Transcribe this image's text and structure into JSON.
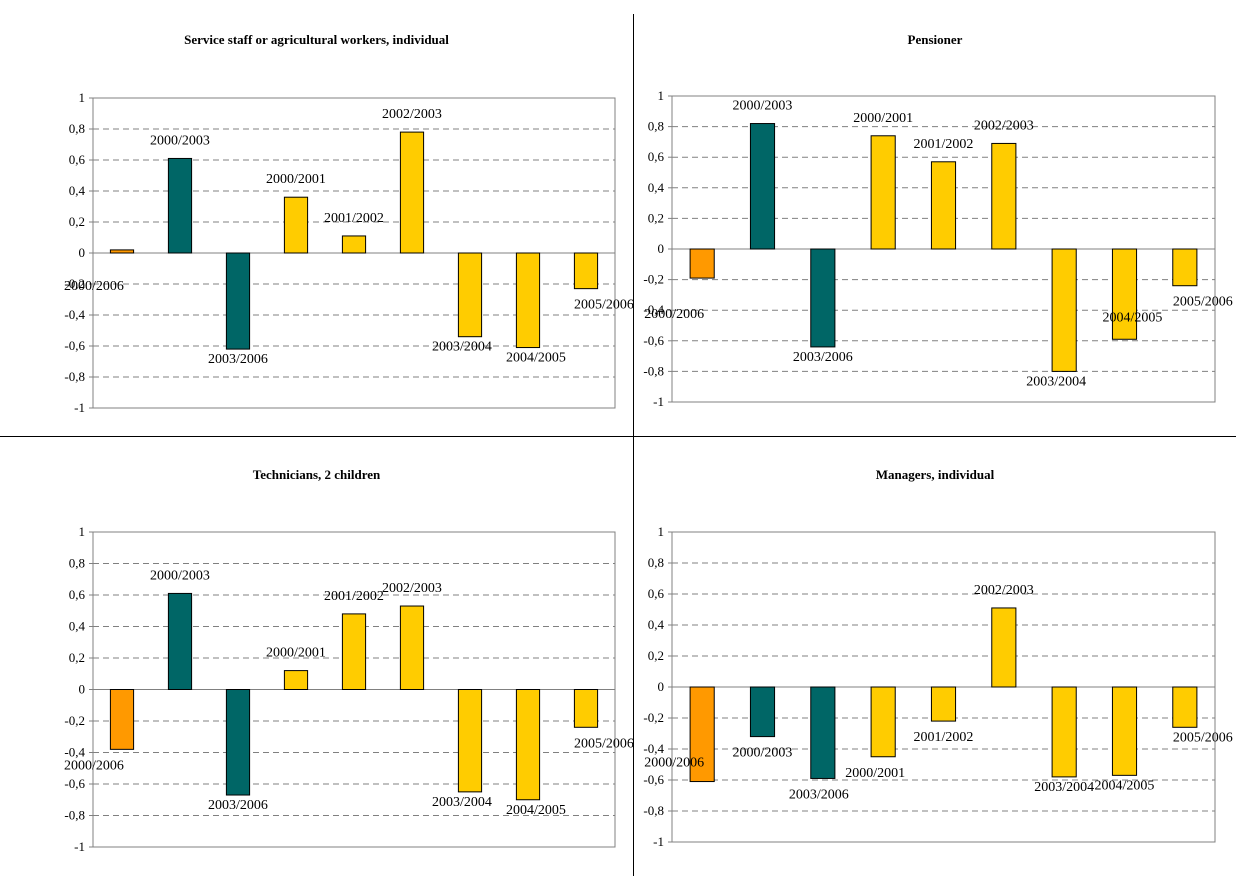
{
  "colors": {
    "first_last": "#FF9900",
    "period": "#006666",
    "annual": "#FFCC00",
    "grid": "#808080",
    "axis": "#808080"
  },
  "chart_data": [
    {
      "type": "bar",
      "title": "Service staff or agricultural workers, individual",
      "categories": [
        "2000/2006",
        "2000/2003",
        "2003/2006",
        "2000/2001",
        "2001/2002",
        "2002/2003",
        "2003/2004",
        "2004/2005",
        "2005/2006"
      ],
      "values": [
        0.02,
        0.61,
        -0.62,
        0.36,
        0.11,
        0.78,
        -0.54,
        -0.61,
        -0.23
      ],
      "bar_colors": [
        "#FF9900",
        "#006666",
        "#006666",
        "#FFCC00",
        "#FFCC00",
        "#FFCC00",
        "#FFCC00",
        "#FFCC00",
        "#FFCC00"
      ],
      "ylim": [
        -1,
        1
      ],
      "yticks": [
        "1",
        "0,8",
        "0,6",
        "0,4",
        "0,2",
        "0",
        "-0,2",
        "-0,4",
        "-0,6",
        "-0,8",
        "-1"
      ],
      "grid": true
    },
    {
      "type": "bar",
      "title": "Pensioner",
      "categories": [
        "2000/2006",
        "2000/2003",
        "2003/2006",
        "2000/2001",
        "2001/2002",
        "2002/2003",
        "2003/2004",
        "2004/2005",
        "2005/2006"
      ],
      "values": [
        -0.19,
        0.82,
        -0.64,
        0.74,
        0.57,
        0.69,
        -0.8,
        -0.59,
        -0.24
      ],
      "bar_colors": [
        "#FF9900",
        "#006666",
        "#006666",
        "#FFCC00",
        "#FFCC00",
        "#FFCC00",
        "#FFCC00",
        "#FFCC00",
        "#FFCC00"
      ],
      "ylim": [
        -1,
        1
      ],
      "yticks": [
        "1",
        "0,8",
        "0,6",
        "0,4",
        "0,2",
        "0",
        "-0,2",
        "-0,4",
        "-0,6",
        "-0,8",
        "-1"
      ],
      "grid": true
    },
    {
      "type": "bar",
      "title": "Technicians, 2 children",
      "categories": [
        "2000/2006",
        "2000/2003",
        "2003/2006",
        "2000/2001",
        "2001/2002",
        "2002/2003",
        "2003/2004",
        "2004/2005",
        "2005/2006"
      ],
      "values": [
        -0.38,
        0.61,
        -0.67,
        0.12,
        0.48,
        0.53,
        -0.65,
        -0.7,
        -0.24
      ],
      "bar_colors": [
        "#FF9900",
        "#006666",
        "#006666",
        "#FFCC00",
        "#FFCC00",
        "#FFCC00",
        "#FFCC00",
        "#FFCC00",
        "#FFCC00"
      ],
      "ylim": [
        -1,
        1
      ],
      "yticks": [
        "1",
        "0,8",
        "0,6",
        "0,4",
        "0,2",
        "0",
        "-0,2",
        "-0,4",
        "-0,6",
        "-0,8",
        "-1"
      ],
      "grid": true
    },
    {
      "type": "bar",
      "title": "Managers, individual",
      "categories": [
        "2000/2006",
        "2000/2003",
        "2003/2006",
        "2000/2001",
        "2001/2002",
        "2002/2003",
        "2003/2004",
        "2004/2005",
        "2005/2006"
      ],
      "values": [
        -0.61,
        -0.32,
        -0.59,
        -0.45,
        -0.22,
        0.51,
        -0.58,
        -0.57,
        -0.26
      ],
      "bar_colors": [
        "#FF9900",
        "#006666",
        "#006666",
        "#FFCC00",
        "#FFCC00",
        "#FFCC00",
        "#FFCC00",
        "#FFCC00",
        "#FFCC00"
      ],
      "ylim": [
        -1,
        1
      ],
      "yticks": [
        "1",
        "0,8",
        "0,6",
        "0,4",
        "0,2",
        "0",
        "-0,2",
        "-0,4",
        "-0,6",
        "-0,8",
        "-1"
      ],
      "grid": true
    }
  ]
}
